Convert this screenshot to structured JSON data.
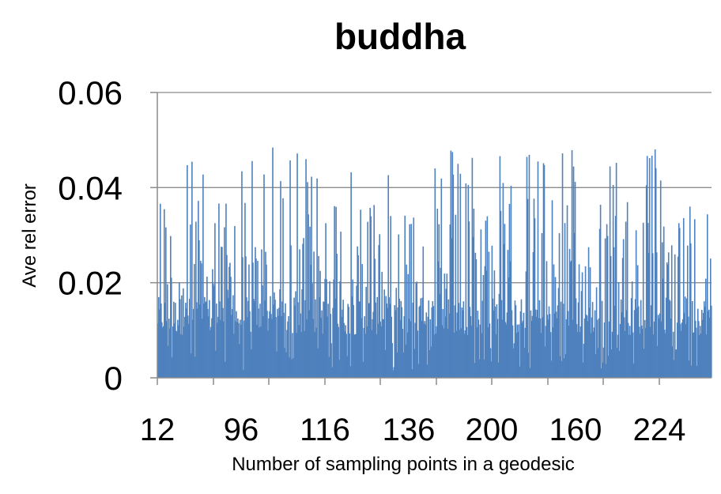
{
  "chart_data": {
    "type": "bar",
    "title": "buddha",
    "xlabel": "Number of sampling points in a geodesic",
    "ylabel": "Ave rel error",
    "ylim": [
      0,
      0.06
    ],
    "y_ticks": [
      "0",
      "0.02",
      "0.04",
      "0.06"
    ],
    "x_tick_labels": [
      "12",
      "96",
      "116",
      "136",
      "200",
      "160",
      "224"
    ],
    "grid": "horizontal",
    "legend": "none",
    "bar_color": "#4f81bd",
    "bar_count": 700,
    "value_range": [
      0.0015,
      0.0485
    ],
    "note": ""
  }
}
